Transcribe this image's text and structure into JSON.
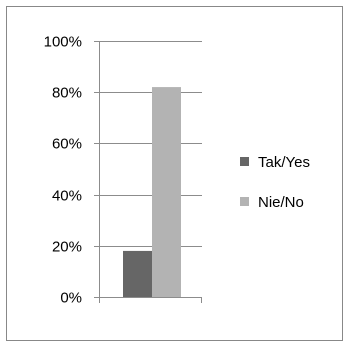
{
  "chart_data": {
    "type": "bar",
    "title": "",
    "xlabel": "",
    "ylabel": "",
    "ylim": [
      0,
      1
    ],
    "yticks": [
      "0%",
      "20%",
      "40%",
      "60%",
      "80%",
      "100%"
    ],
    "ytick_values": [
      0,
      0.2,
      0.4,
      0.6,
      0.8,
      1.0
    ],
    "categories": [
      ""
    ],
    "series": [
      {
        "name": "Tak/Yes",
        "values": [
          0.18
        ],
        "color": "#666666"
      },
      {
        "name": "Nie/No",
        "values": [
          0.82
        ],
        "color": "#b3b3b3"
      }
    ],
    "legend_position": "right",
    "grid": true
  }
}
